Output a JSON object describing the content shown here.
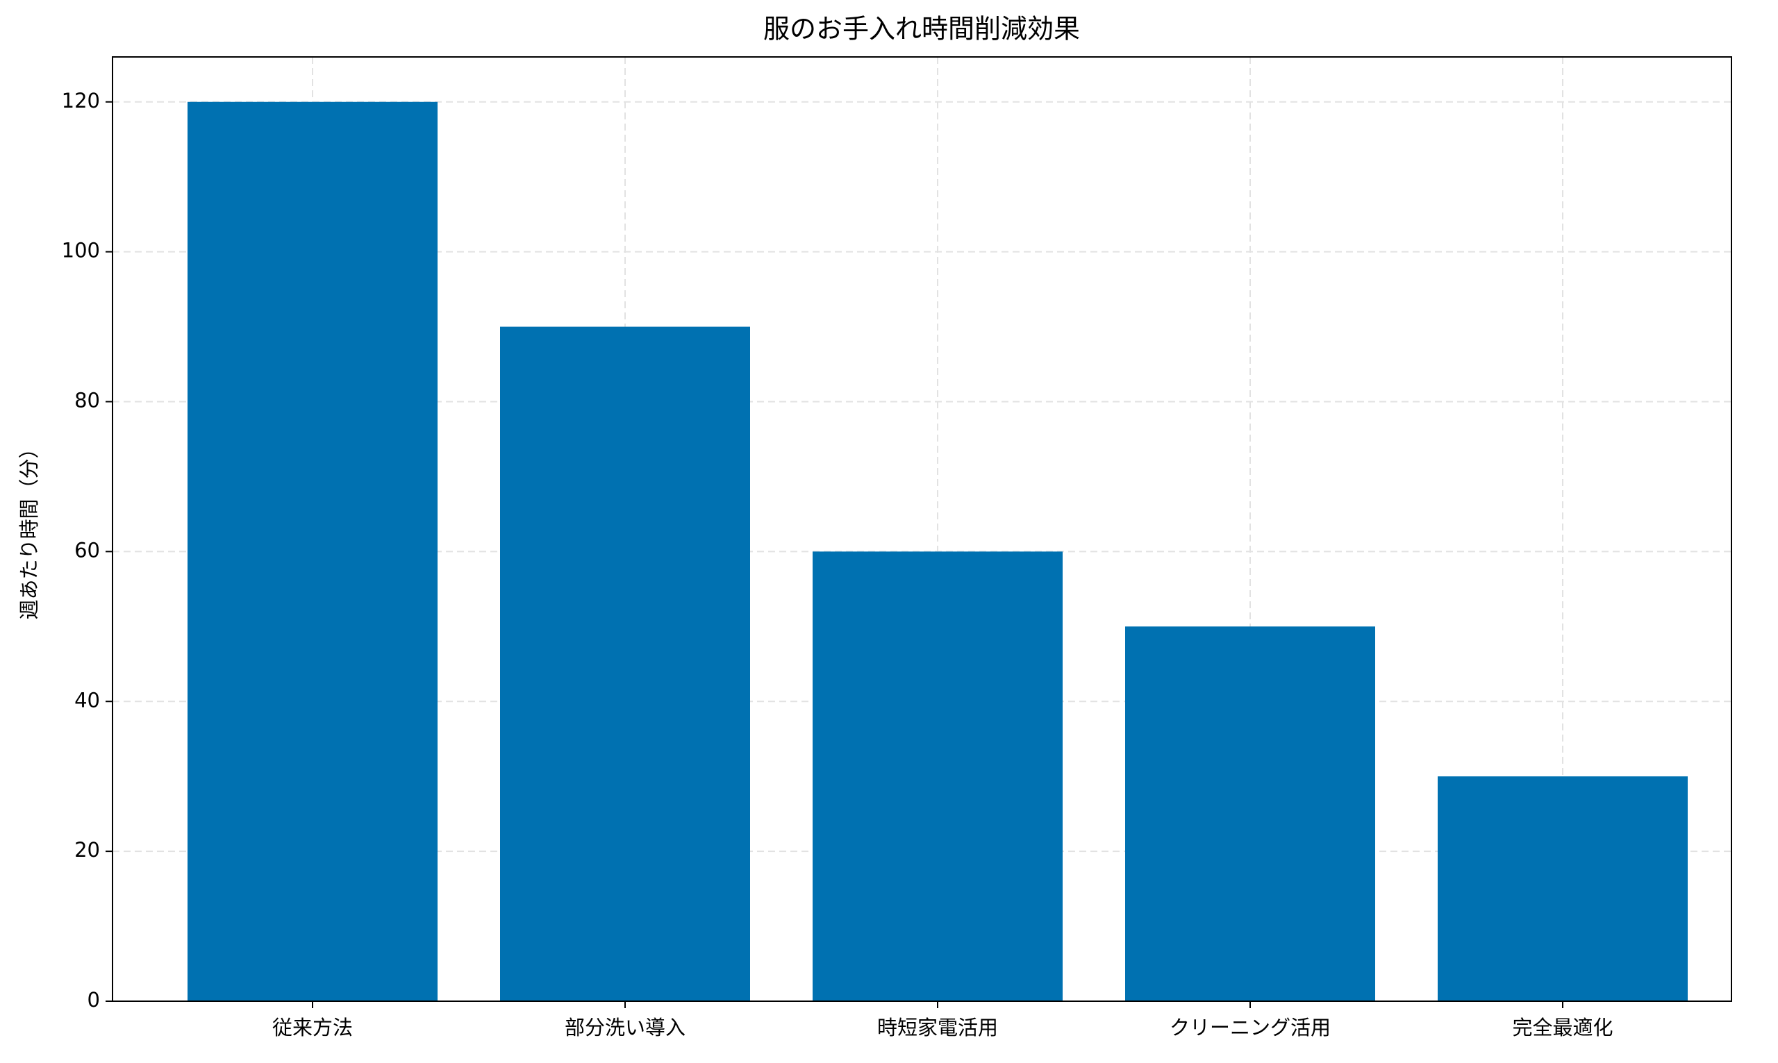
{
  "chart_data": {
    "type": "bar",
    "title": "服のお手入れ時間削減効果",
    "y_label": "週あたり時間（分）",
    "categories": [
      "従来方法",
      "部分洗い導入",
      "時短家電活用",
      "クリーニング活用",
      "完全最適化"
    ],
    "values": [
      120,
      90,
      60,
      50,
      30
    ],
    "color": "#0071b1",
    "ylim": [
      0,
      126
    ],
    "yticks": [
      0,
      20,
      40,
      60,
      80,
      100,
      120
    ],
    "grid": true
  }
}
